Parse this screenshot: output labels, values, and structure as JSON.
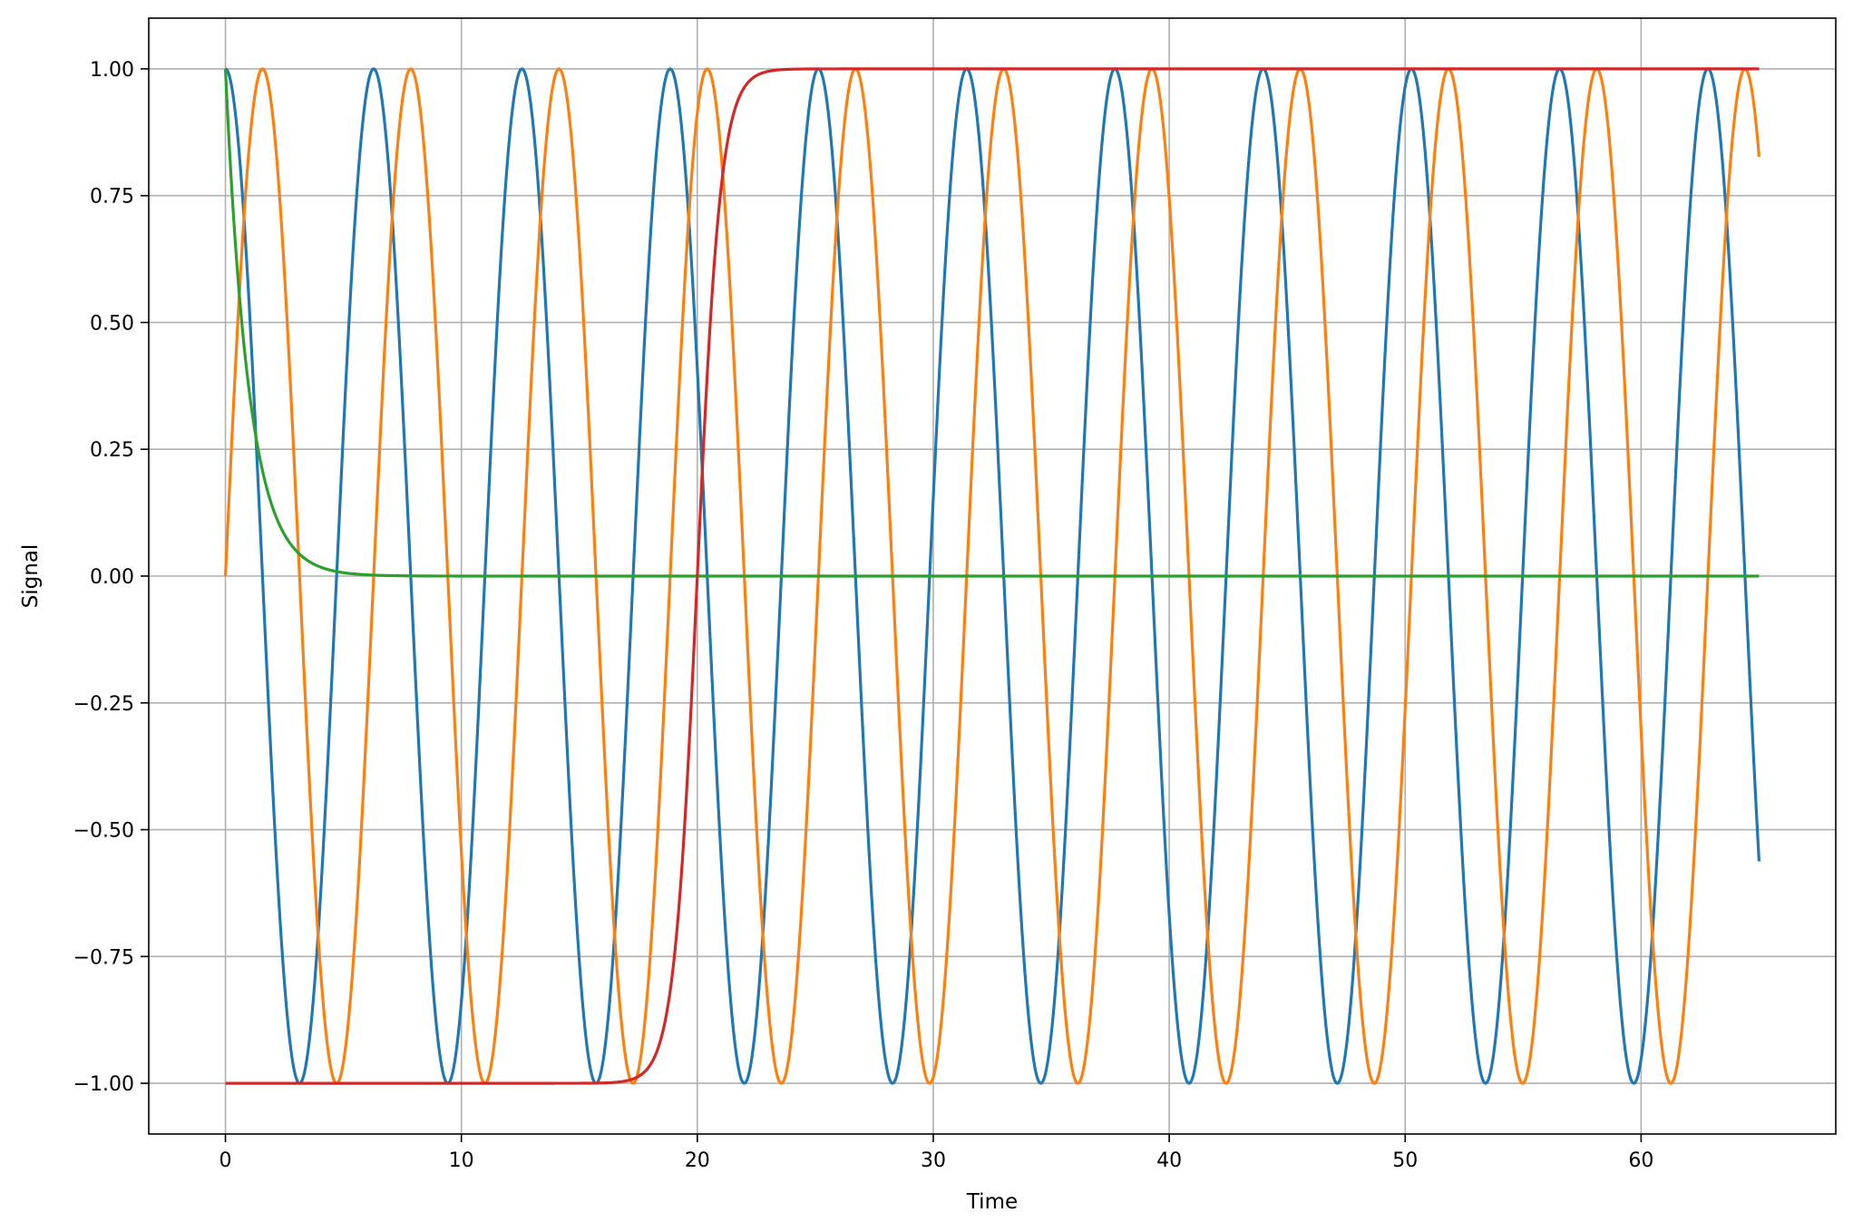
{
  "chart_data": {
    "type": "line",
    "title": "",
    "xlabel": "Time",
    "ylabel": "Signal",
    "xlim": [
      -3.25,
      68.25
    ],
    "ylim": [
      -1.1,
      1.1
    ],
    "grid": true,
    "legend": "none",
    "x_ticks": [
      0,
      10,
      20,
      30,
      40,
      50,
      60
    ],
    "x_tick_labels": [
      "0",
      "10",
      "20",
      "30",
      "40",
      "50",
      "60"
    ],
    "y_ticks": [
      1.0,
      0.75,
      0.5,
      0.25,
      0.0,
      -0.25,
      -0.5,
      -0.75,
      -1.0
    ],
    "y_tick_labels": [
      "1.00",
      "0.75",
      "0.50",
      "0.25",
      "0.00",
      "−0.25",
      "−0.50",
      "−0.75",
      "−1.00"
    ],
    "x_range": [
      0,
      65
    ],
    "series": [
      {
        "color": "#1f77b4",
        "description": "cos(t)",
        "values": [
          [
            0,
            1.0
          ],
          [
            3.14,
            -1.0
          ],
          [
            6.28,
            1.0
          ],
          [
            9.42,
            -1.0
          ],
          [
            12.57,
            1.0
          ],
          [
            15.71,
            -1.0
          ],
          [
            18.85,
            1.0
          ],
          [
            21.99,
            -1.0
          ],
          [
            25.13,
            1.0
          ],
          [
            28.27,
            -1.0
          ],
          [
            31.42,
            1.0
          ],
          [
            34.56,
            -1.0
          ],
          [
            37.7,
            1.0
          ],
          [
            40.84,
            -1.0
          ],
          [
            43.98,
            1.0
          ],
          [
            47.12,
            -1.0
          ],
          [
            50.27,
            1.0
          ],
          [
            53.41,
            -1.0
          ],
          [
            56.55,
            1.0
          ],
          [
            59.69,
            -1.0
          ],
          [
            62.83,
            1.0
          ],
          [
            65.0,
            -0.56
          ]
        ]
      },
      {
        "color": "#ff7f0e",
        "description": "sin(t)",
        "values": [
          [
            0,
            0.0
          ],
          [
            1.57,
            1.0
          ],
          [
            4.71,
            -1.0
          ],
          [
            7.85,
            1.0
          ],
          [
            11.0,
            -1.0
          ],
          [
            14.14,
            1.0
          ],
          [
            17.28,
            -1.0
          ],
          [
            20.42,
            1.0
          ],
          [
            23.56,
            -1.0
          ],
          [
            26.7,
            1.0
          ],
          [
            29.85,
            -1.0
          ],
          [
            32.99,
            1.0
          ],
          [
            36.13,
            -1.0
          ],
          [
            39.27,
            1.0
          ],
          [
            42.41,
            -1.0
          ],
          [
            45.55,
            1.0
          ],
          [
            48.69,
            -1.0
          ],
          [
            51.84,
            1.0
          ],
          [
            54.98,
            -1.0
          ],
          [
            58.12,
            1.0
          ],
          [
            61.26,
            -1.0
          ],
          [
            64.4,
            1.0
          ],
          [
            65.0,
            0.83
          ]
        ]
      },
      {
        "color": "#2ca02c",
        "description": "exp(-t)",
        "values": [
          [
            0,
            1.0
          ],
          [
            0.5,
            0.61
          ],
          [
            1.0,
            0.37
          ],
          [
            1.5,
            0.22
          ],
          [
            2.0,
            0.14
          ],
          [
            3.0,
            0.05
          ],
          [
            4.0,
            0.02
          ],
          [
            5.0,
            0.01
          ],
          [
            7.0,
            0.0
          ],
          [
            65.0,
            0.0
          ]
        ]
      },
      {
        "color": "#d62728",
        "description": "tanh(t - 20)",
        "values": [
          [
            0,
            -1.0
          ],
          [
            16.0,
            -1.0
          ],
          [
            17.0,
            -0.99
          ],
          [
            18.0,
            -0.96
          ],
          [
            19.0,
            -0.76
          ],
          [
            19.5,
            -0.46
          ],
          [
            20.0,
            0.0
          ],
          [
            20.5,
            0.46
          ],
          [
            21.0,
            0.76
          ],
          [
            22.0,
            0.96
          ],
          [
            23.0,
            0.99
          ],
          [
            24.0,
            1.0
          ],
          [
            65.0,
            1.0
          ]
        ]
      }
    ]
  }
}
